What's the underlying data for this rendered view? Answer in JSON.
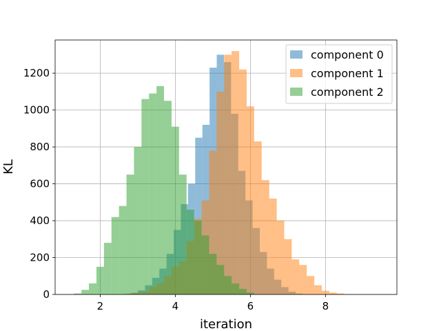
{
  "chart_data": {
    "type": "histogram",
    "xlabel": "iteration",
    "ylabel": "KL",
    "xlim": [
      0.8,
      9.9
    ],
    "ylim": [
      0,
      1380
    ],
    "xticks": [
      2,
      4,
      6,
      8
    ],
    "yticks": [
      0,
      200,
      400,
      600,
      800,
      1000,
      1200
    ],
    "grid": true,
    "legend_position": "top-right",
    "overlay_alpha": 0.5,
    "series": [
      {
        "name": "component 0",
        "color": "#1f77b4",
        "bin_start": 2.62,
        "bin_width": 0.191,
        "counts": [
          3,
          8,
          22,
          50,
          90,
          140,
          220,
          350,
          490,
          600,
          850,
          920,
          1230,
          1300,
          1260,
          980,
          670,
          510,
          360,
          230,
          140,
          80,
          40,
          15,
          5
        ]
      },
      {
        "name": "component 1",
        "color": "#ff7f0e",
        "bin_start": 2.7,
        "bin_width": 0.2,
        "counts": [
          5,
          10,
          15,
          40,
          60,
          100,
          150,
          180,
          290,
          410,
          510,
          780,
          1100,
          1300,
          1320,
          1220,
          1020,
          830,
          620,
          520,
          400,
          300,
          190,
          160,
          100,
          50,
          20,
          10,
          5
        ]
      },
      {
        "name": "component 2",
        "color": "#2ca02c",
        "bin_start": 1.3,
        "bin_width": 0.2,
        "counts": [
          5,
          25,
          60,
          150,
          280,
          420,
          480,
          650,
          800,
          1060,
          1090,
          1130,
          1050,
          910,
          650,
          460,
          400,
          320,
          220,
          160,
          100,
          60,
          30,
          10
        ]
      }
    ]
  }
}
